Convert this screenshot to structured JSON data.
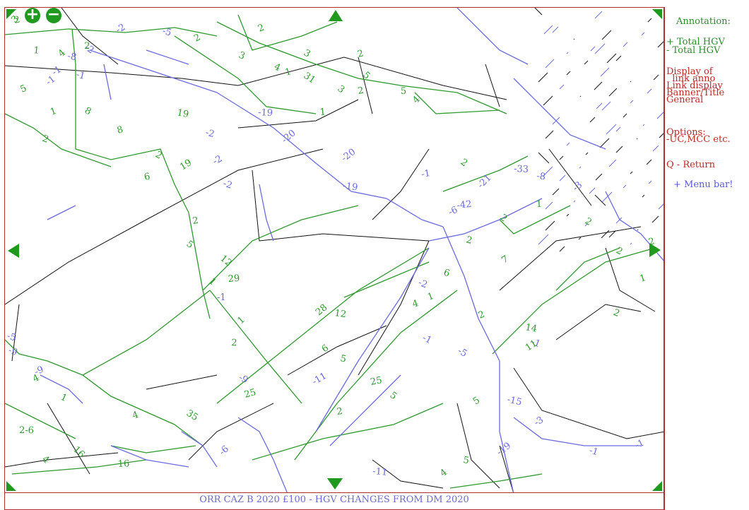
{
  "banner": {
    "title": "ORR CAZ B 2020 £100 - HGV CHANGES FROM DM 2020"
  },
  "side_panel": {
    "heading": "Annotation:",
    "plus_item": "+ Total HGV",
    "minus_item": "- Total HGV",
    "display_of": "Display of",
    "link_anno": "  link anno",
    "link_display": "Link display",
    "banner_title": "Banner/Title",
    "general": "General",
    "options": "Options:",
    "options_detail": "-UC,MCC etc.",
    "return_item": "Q - Return",
    "menu_bar": "+ Menu bar!"
  },
  "controls": {
    "zoom_in": "+",
    "zoom_out": "−"
  },
  "colors": {
    "green_link": "#2e9a2e",
    "blue_link": "#6a6ae0",
    "black_link": "#111111",
    "frame": "#b03030"
  },
  "map_labels": [
    {
      "t": "3",
      "c": "g"
    },
    {
      "t": "2",
      "c": "g"
    },
    {
      "t": "4",
      "c": "g"
    },
    {
      "t": "1",
      "c": "g"
    },
    {
      "t": "-1",
      "c": "b"
    },
    {
      "t": "-8",
      "c": "b"
    },
    {
      "t": "-1",
      "c": "b"
    },
    {
      "t": "-1",
      "c": "b"
    },
    {
      "t": "-2",
      "c": "b"
    },
    {
      "t": "-5",
      "c": "b"
    },
    {
      "t": "2",
      "c": "g"
    },
    {
      "t": "3",
      "c": "g"
    },
    {
      "t": "2",
      "c": "g"
    },
    {
      "t": "4",
      "c": "g"
    },
    {
      "t": "1",
      "c": "g"
    },
    {
      "t": "3",
      "c": "g"
    },
    {
      "t": "2",
      "c": "g"
    },
    {
      "t": "31",
      "c": "g"
    },
    {
      "t": "2",
      "c": "g"
    },
    {
      "t": "3",
      "c": "g"
    },
    {
      "t": "1",
      "c": "g"
    },
    {
      "t": "5",
      "c": "g"
    },
    {
      "t": "5",
      "c": "g"
    },
    {
      "t": "4",
      "c": "g"
    },
    {
      "t": "-19",
      "c": "b"
    },
    {
      "t": "-20",
      "c": "b"
    },
    {
      "t": "-19",
      "c": "b"
    },
    {
      "t": "-20",
      "c": "b"
    },
    {
      "t": "19",
      "c": "g"
    },
    {
      "t": "19",
      "c": "g"
    },
    {
      "t": "-2",
      "c": "b"
    },
    {
      "t": "-2",
      "c": "b"
    },
    {
      "t": "-2",
      "c": "b"
    },
    {
      "t": "5",
      "c": "g"
    },
    {
      "t": "2",
      "c": "g"
    },
    {
      "t": "1",
      "c": "g"
    },
    {
      "t": "8",
      "c": "g"
    },
    {
      "t": "8",
      "c": "g"
    },
    {
      "t": "2",
      "c": "g"
    },
    {
      "t": "6",
      "c": "g"
    },
    {
      "t": "5",
      "c": "g"
    },
    {
      "t": "2",
      "c": "g"
    },
    {
      "t": "12",
      "c": "g"
    },
    {
      "t": "29",
      "c": "g"
    },
    {
      "t": "1",
      "c": "g"
    },
    {
      "t": "-1",
      "c": "b"
    },
    {
      "t": "1",
      "c": "g"
    },
    {
      "t": "2",
      "c": "g"
    },
    {
      "t": "28",
      "c": "g"
    },
    {
      "t": "12",
      "c": "g"
    },
    {
      "t": "6",
      "c": "g"
    },
    {
      "t": "5",
      "c": "g"
    },
    {
      "t": "-11",
      "c": "b"
    },
    {
      "t": "-5",
      "c": "b"
    },
    {
      "t": "4",
      "c": "g"
    },
    {
      "t": "-9",
      "c": "b"
    },
    {
      "t": "-9",
      "c": "b"
    },
    {
      "t": "1",
      "c": "g"
    },
    {
      "t": "4",
      "c": "g"
    },
    {
      "t": "-9",
      "c": "b"
    },
    {
      "t": "25",
      "c": "g"
    },
    {
      "t": "35",
      "c": "g"
    },
    {
      "t": "25",
      "c": "g"
    },
    {
      "t": "5",
      "c": "g"
    },
    {
      "t": "2",
      "c": "g"
    },
    {
      "t": "4",
      "c": "g"
    },
    {
      "t": "16",
      "c": "g"
    },
    {
      "t": "16",
      "c": "g"
    },
    {
      "t": "2-6",
      "c": "g"
    },
    {
      "t": "-6",
      "c": "b"
    },
    {
      "t": "-11",
      "c": "b"
    },
    {
      "t": "4",
      "c": "g"
    },
    {
      "t": "5",
      "c": "g"
    },
    {
      "t": "5",
      "c": "g"
    },
    {
      "t": "-15",
      "c": "b"
    },
    {
      "t": "-3",
      "c": "b"
    },
    {
      "t": "-1",
      "c": "b"
    },
    {
      "t": "-1",
      "c": "b"
    },
    {
      "t": "-1",
      "c": "b"
    },
    {
      "t": "2",
      "c": "g"
    },
    {
      "t": "2",
      "c": "g"
    },
    {
      "t": "1",
      "c": "g"
    },
    {
      "t": "2",
      "c": "g"
    },
    {
      "t": "2",
      "c": "g"
    },
    {
      "t": "2",
      "c": "g"
    },
    {
      "t": "-1",
      "c": "b"
    },
    {
      "t": "2",
      "c": "g"
    },
    {
      "t": "-42",
      "c": "b"
    },
    {
      "t": "2",
      "c": "g"
    },
    {
      "t": "1",
      "c": "g"
    },
    {
      "t": "-21",
      "c": "b"
    },
    {
      "t": "-33",
      "c": "b"
    },
    {
      "t": "-3",
      "c": "b"
    },
    {
      "t": "-8",
      "c": "b"
    },
    {
      "t": "-19",
      "c": "b"
    },
    {
      "t": "14",
      "c": "g"
    },
    {
      "t": "11",
      "c": "g"
    },
    {
      "t": "2",
      "c": "g"
    },
    {
      "t": "7",
      "c": "g"
    },
    {
      "t": "6",
      "c": "g"
    },
    {
      "t": "-6",
      "c": "b"
    },
    {
      "t": "-2",
      "c": "b"
    },
    {
      "t": "1",
      "c": "g"
    },
    {
      "t": "-1",
      "c": "b"
    },
    {
      "t": "4",
      "c": "g"
    },
    {
      "t": "-5",
      "c": "b"
    },
    {
      "t": "2",
      "c": "g"
    },
    {
      "t": "-2",
      "c": "b"
    }
  ]
}
